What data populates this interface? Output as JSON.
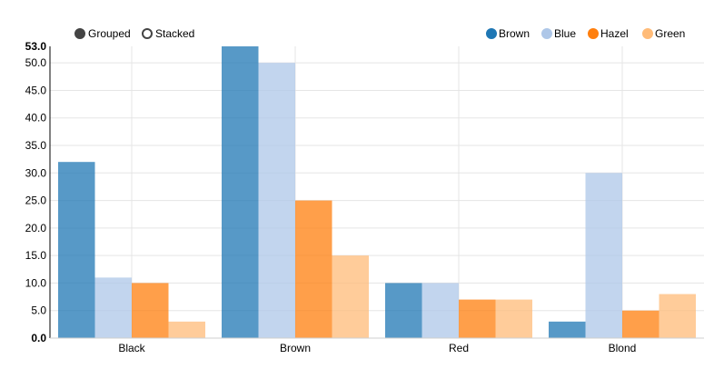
{
  "controls": {
    "options": [
      {
        "label": "Grouped",
        "selected": true
      },
      {
        "label": "Stacked",
        "selected": false
      }
    ]
  },
  "chart_data": {
    "type": "bar",
    "mode": "grouped",
    "categories": [
      "Black",
      "Brown",
      "Red",
      "Blond"
    ],
    "series": [
      {
        "name": "Brown",
        "color": "#1f77b4",
        "values": [
          32,
          53,
          10,
          3
        ]
      },
      {
        "name": "Blue",
        "color": "#aec7e8",
        "values": [
          11,
          50,
          10,
          30
        ]
      },
      {
        "name": "Hazel",
        "color": "#ff7f0e",
        "values": [
          10,
          25,
          7,
          5
        ]
      },
      {
        "name": "Green",
        "color": "#ffbb78",
        "values": [
          3,
          15,
          7,
          8
        ]
      }
    ],
    "ylim": [
      0,
      53
    ],
    "yticks": [
      "0.0",
      "5.0",
      "10.0",
      "15.0",
      "20.0",
      "25.0",
      "30.0",
      "35.0",
      "40.0",
      "45.0",
      "50.0",
      "53.0"
    ],
    "grid": true,
    "legend_position": "top-right"
  }
}
